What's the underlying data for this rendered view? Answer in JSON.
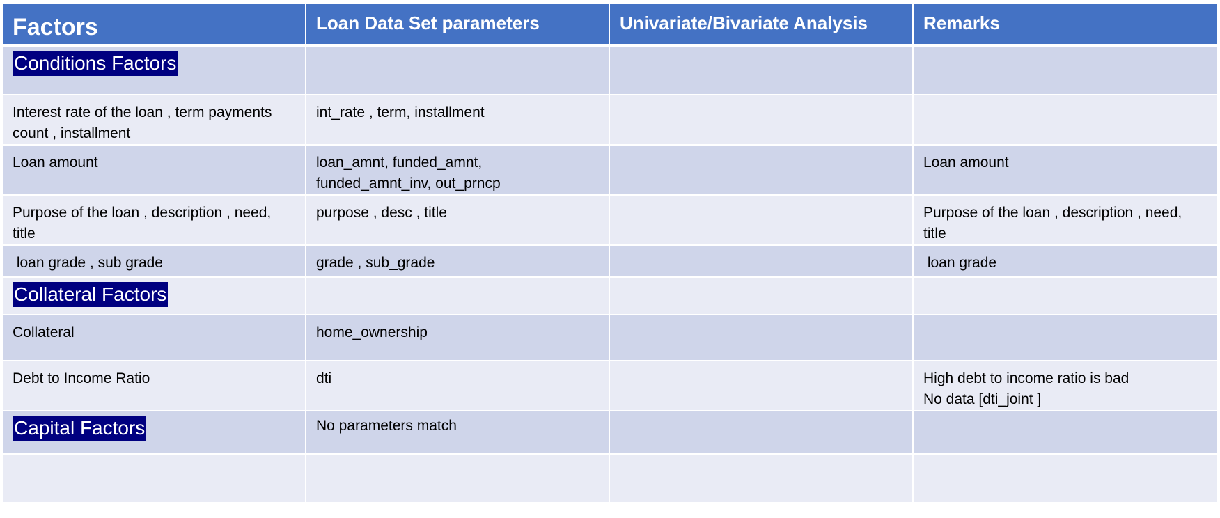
{
  "headers": [
    "Factors",
    "Loan Data Set parameters",
    "Univariate/Bivariate Analysis",
    "Remarks"
  ],
  "rows": [
    {
      "type": "section",
      "factor": "Conditions Factors",
      "params": [],
      "analysis": "",
      "remarks": []
    },
    {
      "type": "data",
      "factor": [
        "Interest rate of the loan , term payments",
        "count , installment"
      ],
      "params": [
        "int_rate , term, installment"
      ],
      "analysis": "",
      "remarks": []
    },
    {
      "type": "data",
      "factor": [
        "Loan amount"
      ],
      "params": [
        "loan_amnt, funded_amnt,",
        "funded_amnt_inv, out_prncp"
      ],
      "analysis": "",
      "remarks": [
        "Loan amount"
      ]
    },
    {
      "type": "data",
      "factor": [
        "Purpose of the loan , description , need,",
        "title"
      ],
      "params": [
        "purpose , desc , title"
      ],
      "analysis": "",
      "remarks": [
        "Purpose of the loan , description , need,",
        "title"
      ]
    },
    {
      "type": "data",
      "factor": [
        " loan grade , sub grade"
      ],
      "params": [
        "grade , sub_grade"
      ],
      "analysis": "",
      "remarks": [
        " loan grade"
      ]
    },
    {
      "type": "section",
      "factor": "Collateral Factors",
      "params": [],
      "analysis": "",
      "remarks": []
    },
    {
      "type": "data",
      "factor": [
        "Collateral"
      ],
      "params": [
        "home_ownership"
      ],
      "analysis": "",
      "remarks": []
    },
    {
      "type": "data",
      "factor": [
        "Debt to Income Ratio"
      ],
      "params": [
        "dti"
      ],
      "analysis": "",
      "remarks": [
        "High debt to income ratio is bad",
        "No data [dti_joint ]"
      ]
    },
    {
      "type": "section",
      "factor": "Capital Factors",
      "params": [
        "No parameters match"
      ],
      "analysis": "",
      "remarks": []
    },
    {
      "type": "data",
      "factor": [],
      "params": [],
      "analysis": "",
      "remarks": []
    }
  ]
}
